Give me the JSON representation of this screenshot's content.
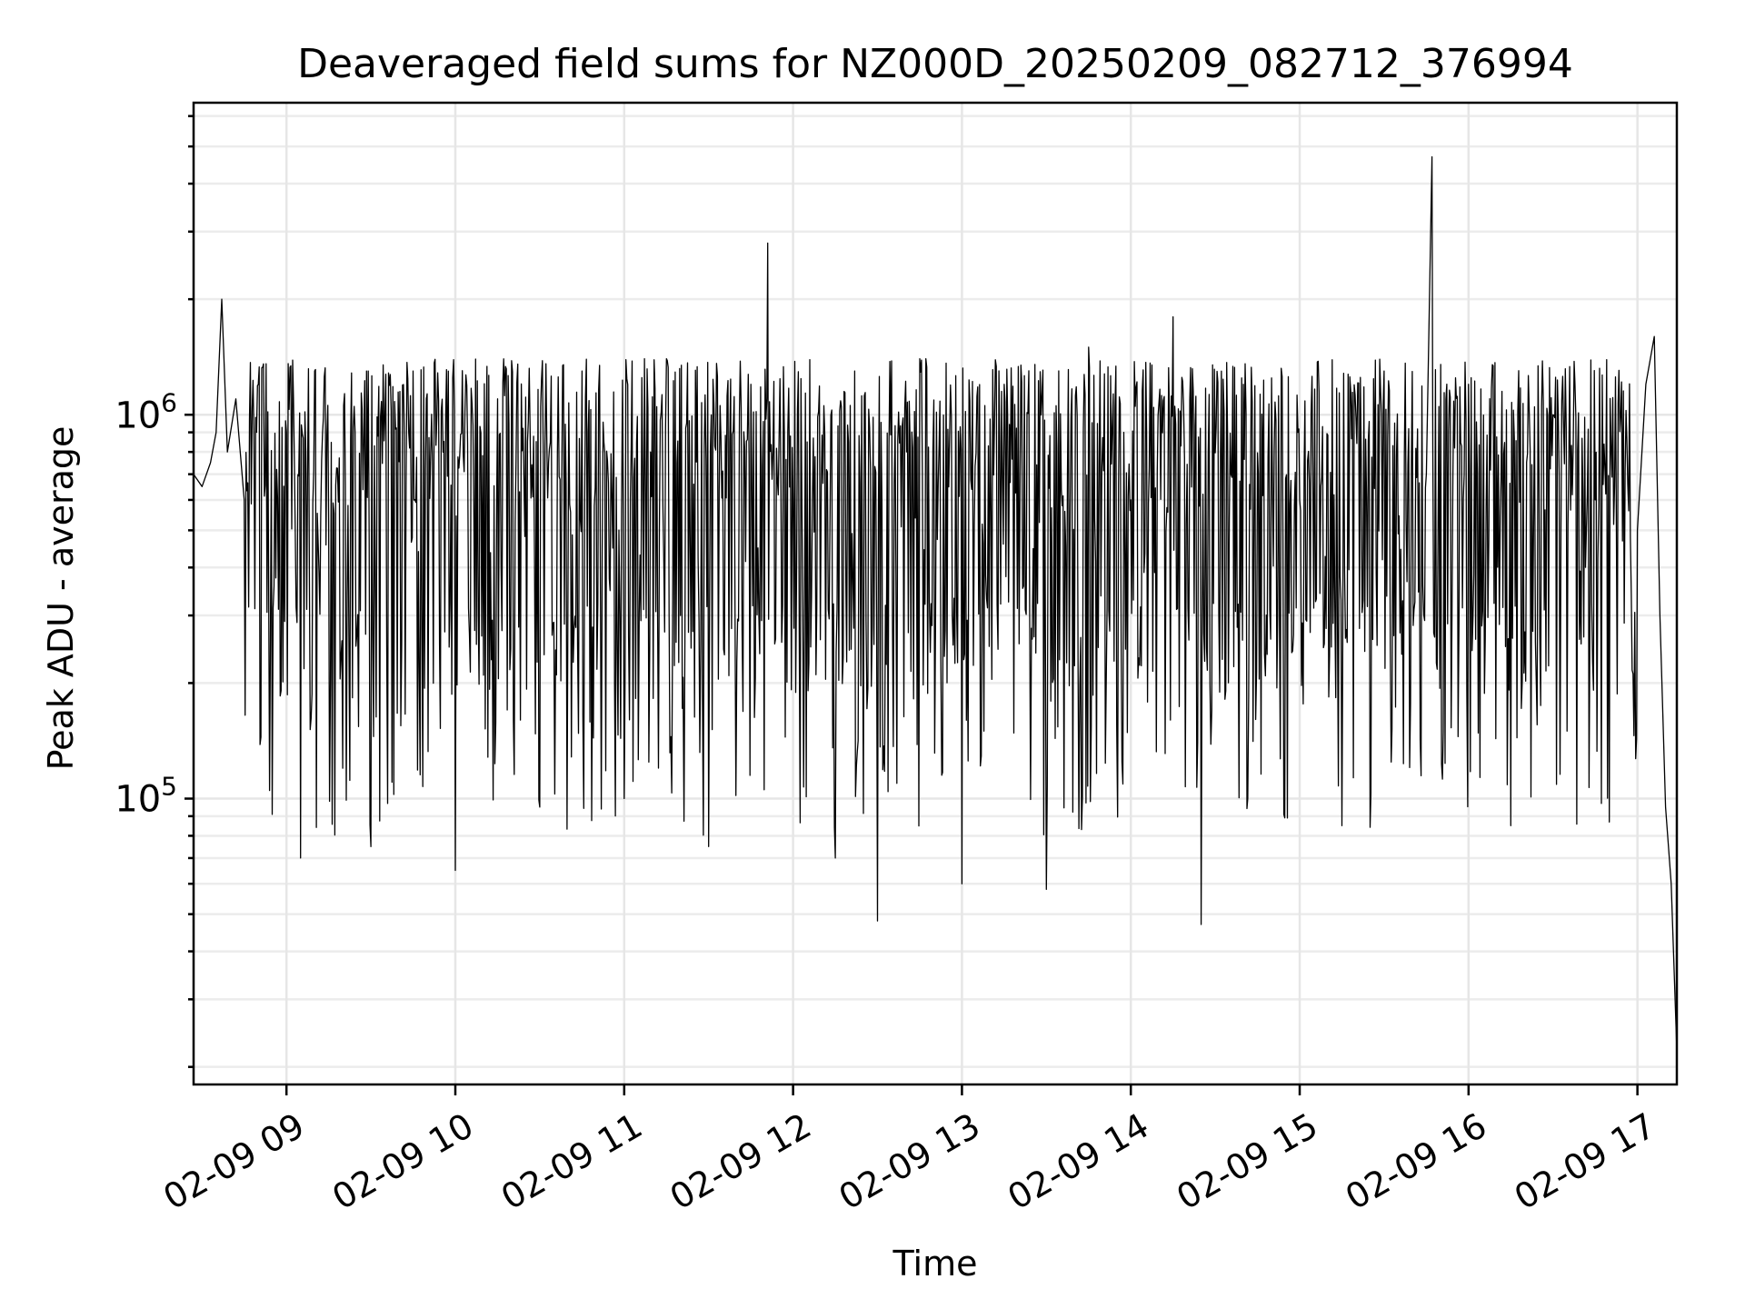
{
  "chart_data": {
    "type": "line",
    "title": "Deaveraged field sums for NZ000D_20250209_082712_376994",
    "xlabel": "Time",
    "ylabel": "Peak ADU - average",
    "yscale": "log",
    "ylim": [
      18000,
      6500000
    ],
    "xlim": [
      "02-09 08:27",
      "02-09 17:14"
    ],
    "grid": true,
    "legend": "none",
    "xticks": [
      "02-09 09",
      "02-09 10",
      "02-09 11",
      "02-09 12",
      "02-09 13",
      "02-09 14",
      "02-09 15",
      "02-09 16",
      "02-09 17"
    ],
    "yticks": [
      {
        "value": 100000,
        "base": "10",
        "exp": "5"
      },
      {
        "value": 1000000,
        "base": "10",
        "exp": "6"
      }
    ],
    "series": [
      {
        "color": "#000000",
        "x": [
          "02-09 08:27",
          "02-09 08:30",
          "02-09 08:33",
          "02-09 08:35",
          "02-09 08:37",
          "02-09 08:39",
          "02-09 08:42",
          "02-09 08:45",
          "02-09 08:50",
          "02-09 08:54",
          "02-09 09:00",
          "02-09 09:05",
          "02-09 09:10",
          "02-09 09:20",
          "02-09 09:30",
          "02-09 09:45",
          "02-09 10:00",
          "02-09 10:15",
          "02-09 10:30",
          "02-09 10:45",
          "02-09 11:00",
          "02-09 11:15",
          "02-09 11:30",
          "02-09 11:45",
          "02-09 11:51",
          "02-09 12:00",
          "02-09 12:15",
          "02-09 12:30",
          "02-09 12:45",
          "02-09 13:00",
          "02-09 13:15",
          "02-09 13:30",
          "02-09 13:45",
          "02-09 14:00",
          "02-09 14:15",
          "02-09 14:25",
          "02-09 14:40",
          "02-09 15:00",
          "02-09 15:15",
          "02-09 15:30",
          "02-09 15:45",
          "02-09 15:47",
          "02-09 16:00",
          "02-09 16:15",
          "02-09 16:30",
          "02-09 16:45",
          "02-09 17:00",
          "02-09 17:03",
          "02-09 17:06",
          "02-09 17:08",
          "02-09 17:10",
          "02-09 17:12",
          "02-09 17:14"
        ],
        "y": [
          700000,
          650000,
          750000,
          900000,
          2000000,
          800000,
          1100000,
          600000,
          1200000,
          105000,
          900000,
          70000,
          1300000,
          120000,
          75000,
          1300000,
          65000,
          1100000,
          95000,
          1300000,
          100000,
          1400000,
          75000,
          1200000,
          2800000,
          600000,
          70000,
          48000,
          1400000,
          60000,
          1200000,
          58000,
          1500000,
          600000,
          1800000,
          47000,
          1200000,
          600000,
          85000,
          1300000,
          700000,
          4700000,
          1200000,
          85000,
          1000000,
          600000,
          500000,
          1200000,
          1600000,
          300000,
          95000,
          60000,
          22000
        ]
      }
    ]
  }
}
